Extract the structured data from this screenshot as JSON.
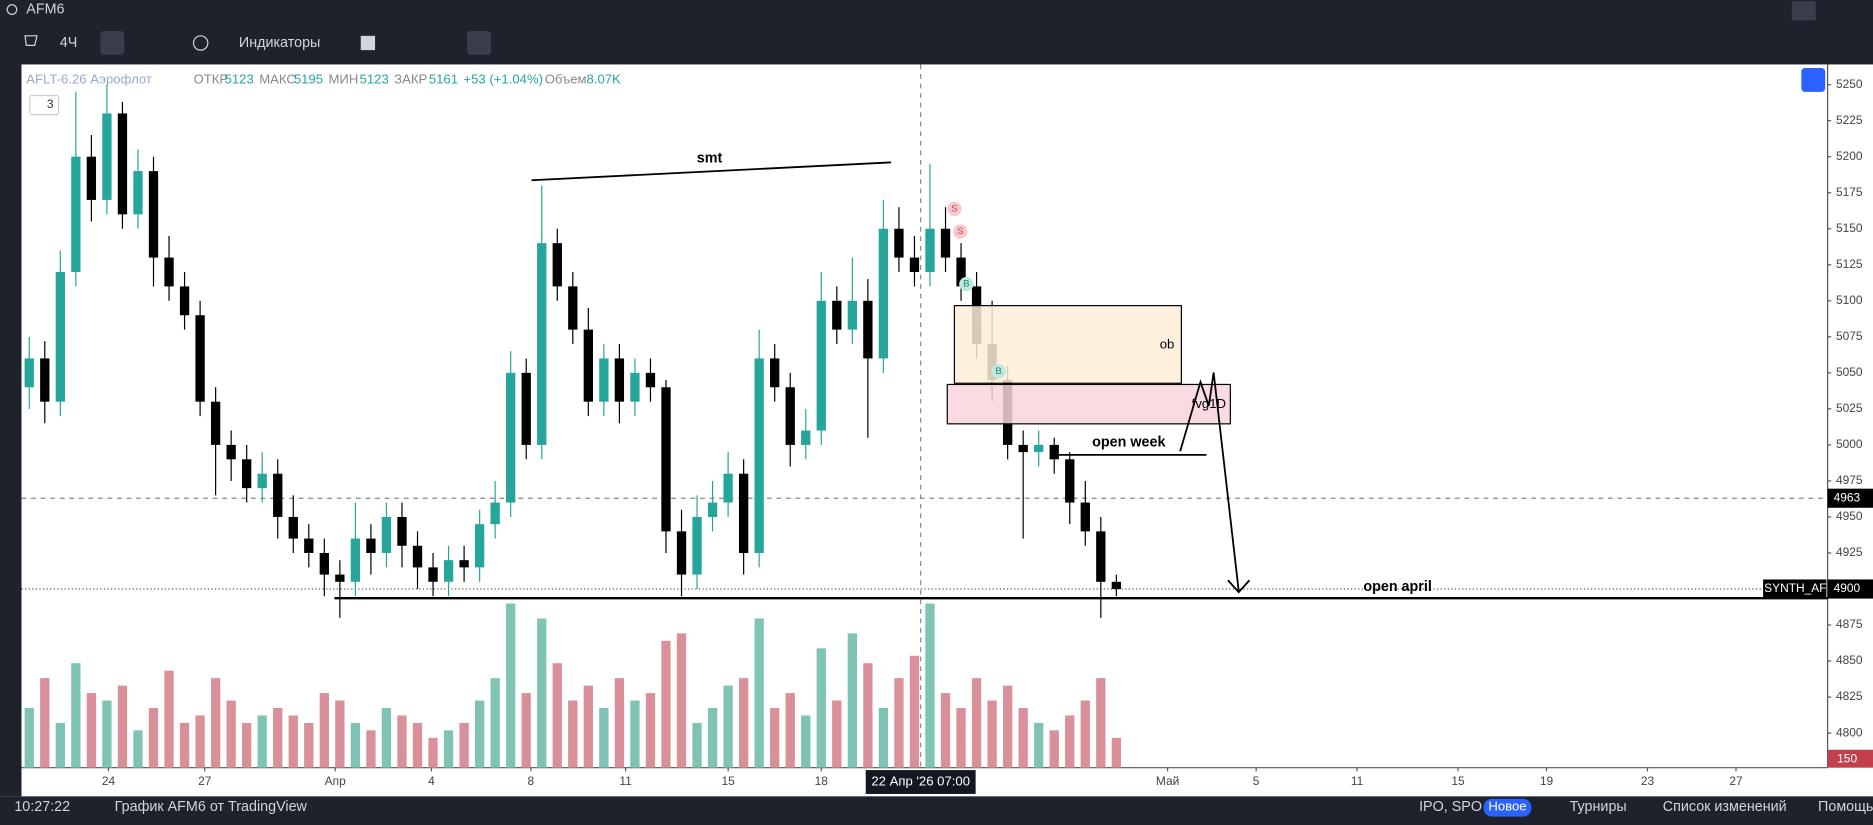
{
  "ui": {
    "symbol": "AFM6",
    "interval": "4Ч",
    "indicators": "Индикаторы",
    "legend": {
      "name": "AFLT-6.26 Аэрофлот",
      "open_label": "ОТКР",
      "open": "5123",
      "high_label": "МАКС",
      "high": "5195",
      "low_label": "МИН",
      "low": "5123",
      "close_label": "ЗАКР",
      "close": "5161",
      "change": "+53 (+1.04%)",
      "volume_label": "Объем",
      "volume": "8.07K"
    },
    "badge": "3",
    "signals": [
      "S",
      "S",
      "B",
      "B"
    ],
    "crosshair_time": "22 Апр '26  07:00",
    "clock": "10:27:22",
    "footer_title": "График AFM6 от TradingView",
    "ipo": "IPO, SPO",
    "new": "Новое",
    "tournaments": "Турниры",
    "changelog": "Список изменений",
    "help": "Помощь"
  },
  "chart_data": {
    "type": "candlestick",
    "annotations": {
      "smt": "smt",
      "ob": "ob",
      "fvg": "fvg1D",
      "open_week": "open week",
      "open_april": "open april"
    },
    "open": [
      5040,
      5060,
      5030,
      5120,
      5200,
      5170,
      5230,
      5160,
      5190,
      5130,
      5110,
      5090,
      5030,
      5000,
      4990,
      4970,
      4980,
      4950,
      4935,
      4925,
      4910,
      4905,
      4935,
      4925,
      4950,
      4930,
      4915,
      4905,
      4920,
      4915,
      4945,
      4960,
      5050,
      5000,
      5140,
      5110,
      5080,
      5030,
      5060,
      5030,
      5050,
      5040,
      4940,
      4910,
      4950,
      4960,
      4980,
      4925,
      5060,
      5040,
      5000,
      5010,
      5100,
      5080,
      5100,
      5060,
      5150,
      5130,
      5120,
      5150,
      5130,
      5110,
      5070,
      5045,
      5000,
      4995,
      5000,
      4990,
      4960,
      4940,
      4905
    ],
    "high": [
      5075,
      5072,
      5135,
      5245,
      5215,
      5250,
      5238,
      5205,
      5200,
      5145,
      5120,
      5100,
      5040,
      5010,
      5000,
      4995,
      4990,
      4965,
      4945,
      4935,
      4920,
      4960,
      4945,
      4960,
      4960,
      4940,
      4925,
      4930,
      4930,
      4955,
      4975,
      5065,
      5060,
      5180,
      5150,
      5120,
      5095,
      5070,
      5070,
      5060,
      5060,
      5045,
      4955,
      4965,
      4975,
      4995,
      4990,
      5080,
      5070,
      5050,
      5025,
      5120,
      5110,
      5130,
      5115,
      5170,
      5165,
      5145,
      5195,
      5165,
      5140,
      5120,
      5100,
      5055,
      5010,
      5010,
      5005,
      4995,
      4975,
      4950,
      4910
    ],
    "low": [
      5025,
      5015,
      5020,
      5110,
      5155,
      5160,
      5150,
      5150,
      5110,
      5100,
      5080,
      5020,
      4965,
      4975,
      4960,
      4960,
      4935,
      4925,
      4915,
      4895,
      4880,
      4895,
      4910,
      4915,
      4915,
      4900,
      4895,
      4895,
      4905,
      4905,
      4935,
      4950,
      4990,
      4990,
      5100,
      5070,
      5020,
      5020,
      5015,
      5020,
      5030,
      4925,
      4895,
      4900,
      4940,
      4950,
      4910,
      4915,
      5030,
      4985,
      4990,
      5000,
      5070,
      5070,
      5005,
      5050,
      5120,
      5110,
      5110,
      5120,
      5100,
      5060,
      5030,
      4990,
      4935,
      4985,
      4980,
      4945,
      4930,
      4880,
      4895
    ],
    "close": [
      5060,
      5030,
      5120,
      5200,
      5170,
      5230,
      5160,
      5190,
      5130,
      5110,
      5090,
      5030,
      5000,
      4990,
      4970,
      4980,
      4950,
      4935,
      4925,
      4910,
      4905,
      4935,
      4925,
      4950,
      4930,
      4915,
      4905,
      4920,
      4915,
      4945,
      4960,
      5050,
      5000,
      5140,
      5110,
      5080,
      5030,
      5060,
      5030,
      5050,
      5040,
      4940,
      4910,
      4950,
      4960,
      4980,
      4925,
      5060,
      5040,
      5000,
      5010,
      5100,
      5080,
      5100,
      5060,
      5150,
      5130,
      5120,
      5150,
      5130,
      5110,
      5070,
      5045,
      5000,
      4995,
      5000,
      4990,
      4960,
      4940,
      4905,
      4900
    ],
    "volume": [
      40,
      60,
      30,
      70,
      50,
      45,
      55,
      25,
      40,
      65,
      30,
      35,
      60,
      45,
      30,
      35,
      40,
      35,
      30,
      50,
      45,
      30,
      25,
      40,
      35,
      30,
      20,
      25,
      30,
      45,
      60,
      110,
      50,
      100,
      70,
      45,
      55,
      40,
      60,
      45,
      50,
      85,
      90,
      30,
      40,
      55,
      60,
      100,
      40,
      50,
      35,
      80,
      45,
      90,
      70,
      40,
      60,
      75,
      110,
      50,
      40,
      60,
      45,
      55,
      40,
      30,
      25,
      35,
      45,
      60,
      20
    ],
    "vlim": [
      0,
      120
    ],
    "up_color": "#26a69a",
    "down_color": "#000000",
    "volume_up_color": "#7fc4b3",
    "volume_down_color": "#d9909a",
    "ylim": [
      4776,
      5264
    ],
    "yticks": [
      4800,
      4825,
      4850,
      4875,
      4900,
      4925,
      4950,
      4975,
      5000,
      5025,
      5050,
      5075,
      5100,
      5125,
      5150,
      5175,
      5200,
      5225,
      5250
    ],
    "xlim": [
      -0.5,
      115.8
    ],
    "xticks": [
      {
        "value": 5.1,
        "label": "24"
      },
      {
        "value": 11.3,
        "label": "27"
      },
      {
        "value": 19.7,
        "label": "Апр"
      },
      {
        "value": 25.9,
        "label": "4"
      },
      {
        "value": 32.3,
        "label": "8"
      },
      {
        "value": 38.4,
        "label": "11"
      },
      {
        "value": 45,
        "label": "15"
      },
      {
        "value": 51,
        "label": "18"
      },
      {
        "value": 73.3,
        "label": "Май"
      },
      {
        "value": 79,
        "label": "5"
      },
      {
        "value": 85.5,
        "label": "11"
      },
      {
        "value": 92,
        "label": "15"
      },
      {
        "value": 97.7,
        "label": "19"
      },
      {
        "value": 104.2,
        "label": "23"
      },
      {
        "value": 109.9,
        "label": "27"
      }
    ],
    "crosshair": {
      "x": 57.4,
      "price": 4963
    },
    "price_tags": [
      {
        "value": 4963,
        "label": "4963"
      },
      {
        "value": 4900,
        "label": "4900",
        "name": "SYNTH_AF"
      }
    ],
    "volume_tag": "150",
    "grid": false
  }
}
